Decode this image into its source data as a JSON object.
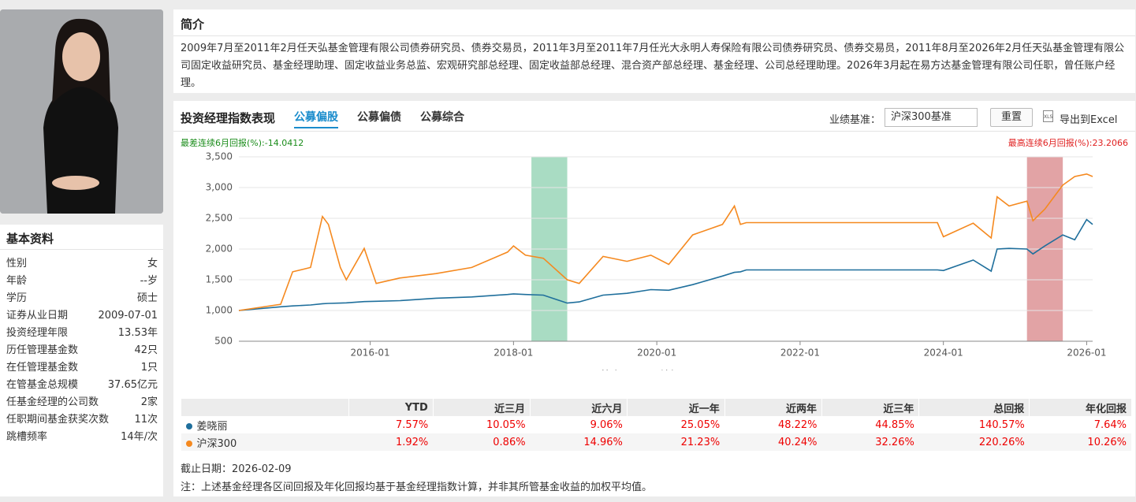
{
  "profile": {
    "title": "基本资料",
    "rows": [
      [
        "性别",
        "女"
      ],
      [
        "年龄",
        "--岁"
      ],
      [
        "学历",
        "硕士"
      ],
      [
        "证券从业日期",
        "2009-07-01"
      ],
      [
        "投资经理年限",
        "13.53年"
      ],
      [
        "历任管理基金数",
        "42只"
      ],
      [
        "在任管理基金数",
        "1只"
      ],
      [
        "在管基金总规模",
        "37.65亿元"
      ],
      [
        "任基金经理的公司数",
        "2家"
      ],
      [
        "任职期间基金获奖次数",
        "11次"
      ],
      [
        "跳槽频率",
        "14年/次"
      ]
    ]
  },
  "intro": {
    "title": "简介",
    "text": "2009年7月至2011年2月任天弘基金管理有限公司债券研究员、债券交易员，2011年3月至2011年7月任光大永明人寿保险有限公司债券研究员、债券交易员，2011年8月至2026年2月任天弘基金管理有限公司固定收益研究员、基金经理助理、固定收益业务总监、宏观研究部总经理、固定收益部总经理、混合资产部总经理、基金经理、公司总经理助理。2026年3月起在易方达基金管理有限公司任职，曾任账户经理。"
  },
  "performance": {
    "title": "投资经理指数表现",
    "tabs": [
      "公募偏股",
      "公募偏债",
      "公募综合"
    ],
    "active_tab": 0,
    "benchmark_label": "业绩基准：",
    "benchmark_value": "沪深300基准",
    "reset_button": "重置",
    "export_button": "导出到Excel",
    "export_icon": "XLS"
  },
  "chart_data": {
    "type": "line",
    "x": [
      "2014-03",
      "2014-10",
      "2014-12",
      "2015-03",
      "2015-05",
      "2015-06",
      "2015-08",
      "2015-09",
      "2015-12",
      "2016-02",
      "2016-06",
      "2016-12",
      "2017-06",
      "2017-12",
      "2018-01",
      "2018-03",
      "2018-06",
      "2018-10",
      "2018-12",
      "2019-04",
      "2019-08",
      "2019-12",
      "2020-03",
      "2020-07",
      "2020-12",
      "2021-02",
      "2021-03",
      "2021-04",
      "2023-12",
      "2024-01",
      "2024-06",
      "2024-09",
      "2024-10",
      "2024-12",
      "2025-03",
      "2025-04",
      "2025-06",
      "2025-09",
      "2025-11",
      "2026-01",
      "2026-02"
    ],
    "series": [
      {
        "name": "姜晓丽",
        "color": "#1f6f9c",
        "values": [
          1000,
          1060,
          1075,
          1090,
          1110,
          1115,
          1120,
          1125,
          1145,
          1150,
          1160,
          1200,
          1220,
          1260,
          1270,
          1260,
          1250,
          1120,
          1140,
          1250,
          1280,
          1340,
          1330,
          1420,
          1560,
          1620,
          1630,
          1660,
          1660,
          1650,
          1820,
          1640,
          2000,
          2010,
          2000,
          1920,
          2050,
          2230,
          2150,
          2480,
          2400
        ]
      },
      {
        "name": "沪深300",
        "color": "#f5891f",
        "values": [
          1000,
          1100,
          1630,
          1700,
          2530,
          2400,
          1700,
          1500,
          2010,
          1440,
          1530,
          1600,
          1700,
          1950,
          2050,
          1900,
          1850,
          1500,
          1440,
          1880,
          1800,
          1900,
          1750,
          2230,
          2400,
          2700,
          2400,
          2430,
          2430,
          2200,
          2420,
          2180,
          2850,
          2700,
          2780,
          2460,
          2650,
          3040,
          3180,
          3220,
          3180
        ]
      }
    ],
    "xlim": [
      "2014-03",
      "2026-02"
    ],
    "xticks": [
      "2016-01",
      "2018-01",
      "2020-01",
      "2022-01",
      "2024-01",
      "2026-01"
    ],
    "ylim": [
      500,
      3500
    ],
    "yticks": [
      500,
      {
        "value": 1000,
        "label": "1,000"
      },
      {
        "value": 1500,
        "label": "1,500"
      },
      {
        "value": 2000,
        "label": "2,000"
      },
      {
        "value": 2500,
        "label": "2,500"
      },
      {
        "value": 3000,
        "label": "3,000"
      },
      {
        "value": 3500,
        "label": "3,500"
      }
    ],
    "grid": true,
    "bands": [
      {
        "start": "2018-04",
        "end": "2018-10",
        "color": "#a9dcc3",
        "label_color": "#1a8c1a",
        "label": "最差连续6月回报(%):-14.0412"
      },
      {
        "start": "2025-03",
        "end": "2025-09",
        "color": "#e2a3a5",
        "label_color": "#e02020",
        "label": "最高连续6月回报(%):23.2066"
      }
    ],
    "legend": "bottom"
  },
  "table": {
    "columns": [
      "YTD",
      "近三月",
      "近六月",
      "近一年",
      "近两年",
      "近三年",
      "总回报",
      "年化回报"
    ],
    "rows": [
      {
        "name": "姜晓丽",
        "cells": [
          "7.57%",
          "10.05%",
          "9.06%",
          "25.05%",
          "48.22%",
          "44.85%",
          "140.57%",
          "7.64%"
        ]
      },
      {
        "name": "沪深300",
        "cells": [
          "1.92%",
          "0.86%",
          "14.96%",
          "21.23%",
          "40.24%",
          "32.26%",
          "220.26%",
          "10.26%"
        ]
      }
    ]
  },
  "footer": {
    "as_of": "截止日期：2026-02-09",
    "note": "注：上述基金经理各区间回报及年化回报均基于基金经理指数计算，并非其所管基金收益的加权平均值。"
  }
}
